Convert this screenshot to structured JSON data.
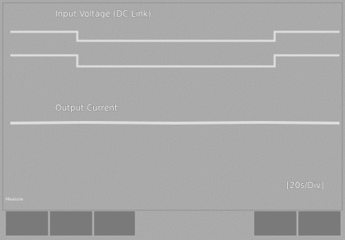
{
  "screen": {
    "input_label": "Input Voltage (DC Link)",
    "output_label": "Output Current",
    "timebase": "[20s/Div]",
    "measure_label": "Measure"
  }
}
